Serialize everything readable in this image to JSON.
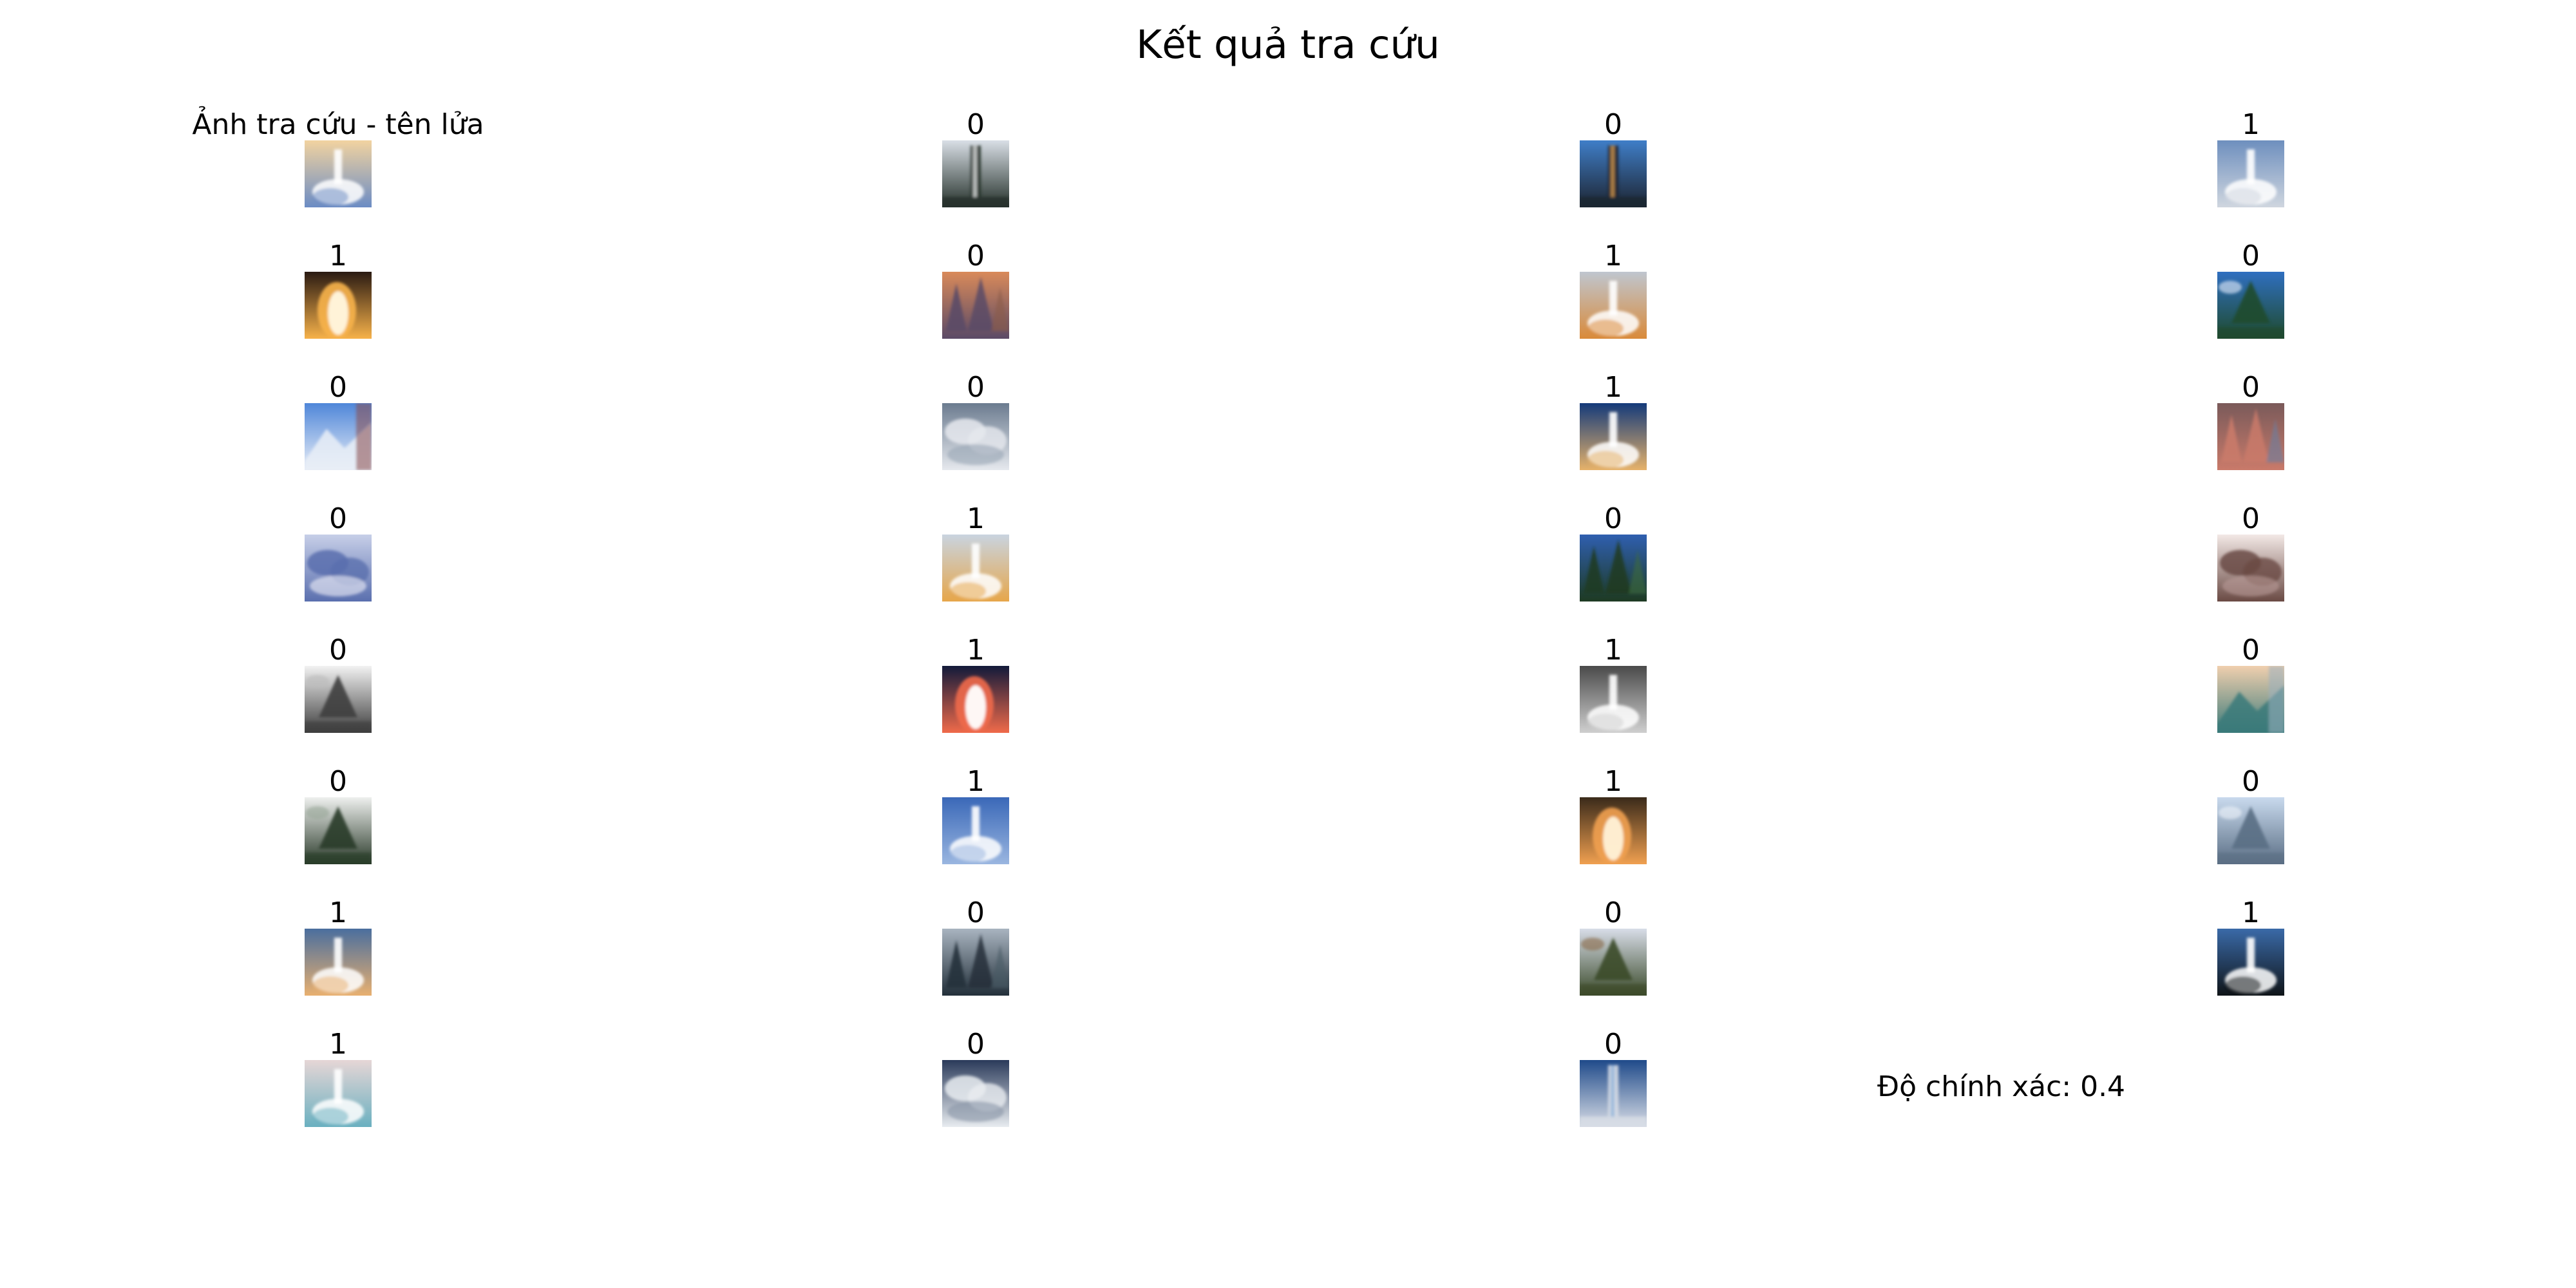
{
  "title": "Kết quả tra cứu",
  "accuracy_text": "Độ chính xác: 0.4",
  "chart_data": {
    "type": "image_grid",
    "title": "Kết quả tra cứu",
    "rows": 8,
    "cols": 4,
    "cells": [
      {
        "label": "Ảnh tra cứu - tên lửa",
        "scene": "rocket",
        "palette": [
          "#f2d3a0",
          "#6b8cc4",
          "#ffffff"
        ]
      },
      {
        "label": "0",
        "scene": "tower",
        "palette": [
          "#d9dfe6",
          "#24302a",
          "#f4f4f4"
        ]
      },
      {
        "label": "0",
        "scene": "tower",
        "palette": [
          "#3f7ec8",
          "#1d2430",
          "#e5a34d"
        ]
      },
      {
        "label": "1",
        "scene": "rocket",
        "palette": [
          "#6e8fbe",
          "#cfd6df",
          "#ffffff"
        ]
      },
      {
        "label": "1",
        "scene": "fire",
        "palette": [
          "#2a1a12",
          "#f7b24a",
          "#fff7e0"
        ]
      },
      {
        "label": "0",
        "scene": "trees",
        "palette": [
          "#d98a5a",
          "#5b4a66",
          "#8a5a4a"
        ]
      },
      {
        "label": "1",
        "scene": "rocket",
        "palette": [
          "#bfc6cf",
          "#d98a3a",
          "#ffffff"
        ]
      },
      {
        "label": "0",
        "scene": "tree",
        "palette": [
          "#2f6fc0",
          "#1f4a2c",
          "#e8f0ff"
        ]
      },
      {
        "label": "0",
        "scene": "mountain",
        "palette": [
          "#4f86d9",
          "#e9eef7",
          "#8a4a4a"
        ]
      },
      {
        "label": "0",
        "scene": "clouds",
        "palette": [
          "#6b7b8f",
          "#e6e9ee",
          "#9aa6b5"
        ]
      },
      {
        "label": "1",
        "scene": "rocket",
        "palette": [
          "#143a7a",
          "#e6b26a",
          "#ffffff"
        ]
      },
      {
        "label": "0",
        "scene": "trees",
        "palette": [
          "#7a5a5a",
          "#c97a6a",
          "#6a7fa0"
        ]
      },
      {
        "label": "0",
        "scene": "clouds",
        "palette": [
          "#c7cfe8",
          "#5a6fae",
          "#f0f0f8"
        ]
      },
      {
        "label": "1",
        "scene": "rocket",
        "palette": [
          "#c9d4e0",
          "#e6a64a",
          "#ffffff"
        ]
      },
      {
        "label": "0",
        "scene": "trees",
        "palette": [
          "#2f5fb0",
          "#1e3a22",
          "#3a6a3a"
        ]
      },
      {
        "label": "0",
        "scene": "clouds",
        "palette": [
          "#f3e9e6",
          "#6a4a44",
          "#b89a96"
        ]
      },
      {
        "label": "0",
        "scene": "tree",
        "palette": [
          "#f2f2f2",
          "#3e3e3e",
          "#bdbdbd"
        ]
      },
      {
        "label": "1",
        "scene": "fire",
        "palette": [
          "#121a3a",
          "#f06a4a",
          "#ffffff"
        ]
      },
      {
        "label": "1",
        "scene": "rocket",
        "palette": [
          "#4a4a4a",
          "#cfcfcf",
          "#ffffff"
        ]
      },
      {
        "label": "0",
        "scene": "mountain",
        "palette": [
          "#f0cfae",
          "#3a7a7a",
          "#9ab0c0"
        ]
      },
      {
        "label": "0",
        "scene": "tree",
        "palette": [
          "#eef0ee",
          "#2a3a2a",
          "#9aa89a"
        ]
      },
      {
        "label": "1",
        "scene": "rocket",
        "palette": [
          "#3a68b8",
          "#9ab6e0",
          "#ffffff"
        ]
      },
      {
        "label": "1",
        "scene": "fire",
        "palette": [
          "#3a2a1a",
          "#f0a050",
          "#fff2d8"
        ]
      },
      {
        "label": "0",
        "scene": "tree",
        "palette": [
          "#c9daee",
          "#5a6e84",
          "#eef4fa"
        ]
      },
      {
        "label": "1",
        "scene": "rocket",
        "palette": [
          "#4a6e9e",
          "#e8b070",
          "#ffffff"
        ]
      },
      {
        "label": "0",
        "scene": "trees",
        "palette": [
          "#a9b4c0",
          "#23303a",
          "#4a5a66"
        ]
      },
      {
        "label": "0",
        "scene": "tree",
        "palette": [
          "#d8dde8",
          "#3a4a2a",
          "#8a6a4a"
        ]
      },
      {
        "label": "1",
        "scene": "rocket",
        "palette": [
          "#3a6aa8",
          "#0f1418",
          "#ffffff"
        ]
      },
      {
        "label": "1",
        "scene": "rocket",
        "palette": [
          "#e6d6d6",
          "#6ab0c0",
          "#ffffff"
        ]
      },
      {
        "label": "0",
        "scene": "clouds",
        "palette": [
          "#2a3a5a",
          "#e8ecf0",
          "#8a96a8"
        ]
      },
      {
        "label": "0",
        "scene": "tower",
        "palette": [
          "#1f4a8a",
          "#d8dde6",
          "#8ab0d8"
        ]
      }
    ]
  }
}
